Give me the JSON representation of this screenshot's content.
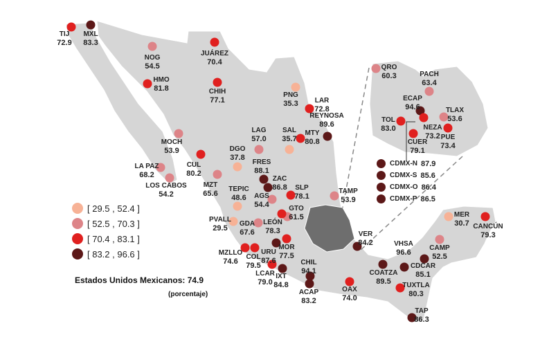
{
  "colors": {
    "cat1": "#f7b296",
    "cat2": "#dd8488",
    "cat3": "#e0201f",
    "cat4": "#5c1818",
    "land": "#d6d6d6",
    "region": "#6e6e6e"
  },
  "legend": [
    {
      "label": "[ 29.5 , 52.4 ]",
      "cat": "cat1"
    },
    {
      "label": "[ 52.5 , 70.3 ]",
      "cat": "cat2"
    },
    {
      "label": "[ 70.4 , 83.1 ]",
      "cat": "cat3"
    },
    {
      "label": "[ 83.2 , 96.6 ]",
      "cat": "cat4"
    }
  ],
  "total": "Estados Unidos Mexicanos: 74.9",
  "unit": "(porcentaje)",
  "cities": [
    {
      "name": "TIJ",
      "value": "72.9",
      "cat": "cat3"
    },
    {
      "name": "MXL",
      "value": "83.3",
      "cat": "cat4"
    },
    {
      "name": "NOG",
      "value": "54.5",
      "cat": "cat2"
    },
    {
      "name": "JUÁREZ",
      "value": "70.4",
      "cat": "cat3"
    },
    {
      "name": "HMO",
      "value": "81.8",
      "cat": "cat3"
    },
    {
      "name": "CHIH",
      "value": "77.1",
      "cat": "cat3"
    },
    {
      "name": "PNG",
      "value": "35.3",
      "cat": "cat1"
    },
    {
      "name": "LAR",
      "value": "72.8",
      "cat": "cat3"
    },
    {
      "name": "REYNOSA",
      "value": "89.6",
      "cat": "cat4"
    },
    {
      "name": "MOCH",
      "value": "53.9",
      "cat": "cat2"
    },
    {
      "name": "LAG",
      "value": "57.0",
      "cat": "cat2"
    },
    {
      "name": "SAL",
      "value": "35.7",
      "cat": "cat1"
    },
    {
      "name": "MTY",
      "value": "80.8",
      "cat": "cat3"
    },
    {
      "name": "DGO",
      "value": "37.8",
      "cat": "cat1"
    },
    {
      "name": "FRES",
      "value": "88.1",
      "cat": "cat4"
    },
    {
      "name": "ZAC",
      "value": "86.8",
      "cat": "cat4"
    },
    {
      "name": "CUL",
      "value": "80.2",
      "cat": "cat3"
    },
    {
      "name": "LA PAZ",
      "value": "68.2",
      "cat": "cat2"
    },
    {
      "name": "LOS CABOS",
      "value": "54.2",
      "cat": "cat2"
    },
    {
      "name": "MZT",
      "value": "65.6",
      "cat": "cat2"
    },
    {
      "name": "TEPIC",
      "value": "48.6",
      "cat": "cat1"
    },
    {
      "name": "AGS",
      "value": "54.4",
      "cat": "cat2"
    },
    {
      "name": "SLP",
      "value": "78.1",
      "cat": "cat3"
    },
    {
      "name": "GTO",
      "value": "61.5",
      "cat": "cat2"
    },
    {
      "name": "LEÓN",
      "value": "78.3",
      "cat": "cat3"
    },
    {
      "name": "PVALL",
      "value": "29.5",
      "cat": "cat1"
    },
    {
      "name": "GDA",
      "value": "67.6",
      "cat": "cat2"
    },
    {
      "name": "TAMP",
      "value": "53.9",
      "cat": "cat2"
    },
    {
      "name": "MOR",
      "value": "77.5",
      "cat": "cat3"
    },
    {
      "name": "URU",
      "value": "87.6",
      "cat": "cat4"
    },
    {
      "name": "MZLLO",
      "value": "74.6",
      "cat": "cat3"
    },
    {
      "name": "COL",
      "value": "79.5",
      "cat": "cat3"
    },
    {
      "name": "LCAR",
      "value": "79.0",
      "cat": "cat3"
    },
    {
      "name": "IXT",
      "value": "84.8",
      "cat": "cat4"
    },
    {
      "name": "CHIL",
      "value": "94.1",
      "cat": "cat4"
    },
    {
      "name": "ACAP",
      "value": "83.2",
      "cat": "cat4"
    },
    {
      "name": "VER",
      "value": "84.2",
      "cat": "cat4"
    },
    {
      "name": "OAX",
      "value": "74.0",
      "cat": "cat3"
    },
    {
      "name": "COATZA",
      "value": "89.5",
      "cat": "cat4"
    },
    {
      "name": "VHSA",
      "value": "96.6",
      "cat": "cat4"
    },
    {
      "name": "CDCAR",
      "value": "85.1",
      "cat": "cat4"
    },
    {
      "name": "CAMP",
      "value": "52.5",
      "cat": "cat2"
    },
    {
      "name": "MER",
      "value": "30.7",
      "cat": "cat1"
    },
    {
      "name": "CANCÚN",
      "value": "79.3",
      "cat": "cat3"
    },
    {
      "name": "TUXTLA",
      "value": "80.3",
      "cat": "cat3"
    },
    {
      "name": "TAP",
      "value": "86.3",
      "cat": "cat4"
    },
    {
      "name": "QRO",
      "value": "60.3",
      "cat": "cat2"
    },
    {
      "name": "PACH",
      "value": "63.4",
      "cat": "cat2"
    },
    {
      "name": "ECAP",
      "value": "94.6",
      "cat": "cat4"
    },
    {
      "name": "NEZA",
      "value": "73.2",
      "cat": "cat3"
    },
    {
      "name": "TOL",
      "value": "83.0",
      "cat": "cat3"
    },
    {
      "name": "CUER",
      "value": "79.1",
      "cat": "cat3"
    },
    {
      "name": "TLAX",
      "value": "53.6",
      "cat": "cat2"
    },
    {
      "name": "PUE",
      "value": "73.4",
      "cat": "cat3"
    }
  ],
  "cdmx": [
    {
      "name": "CDMX-N",
      "value": "87.9",
      "cat": "cat4"
    },
    {
      "name": "CDMX-S",
      "value": "85.6",
      "cat": "cat4"
    },
    {
      "name": "CDMX-O",
      "value": "86.4",
      "cat": "cat4"
    },
    {
      "name": "CDMX-P",
      "value": "86.5",
      "cat": "cat4"
    }
  ]
}
